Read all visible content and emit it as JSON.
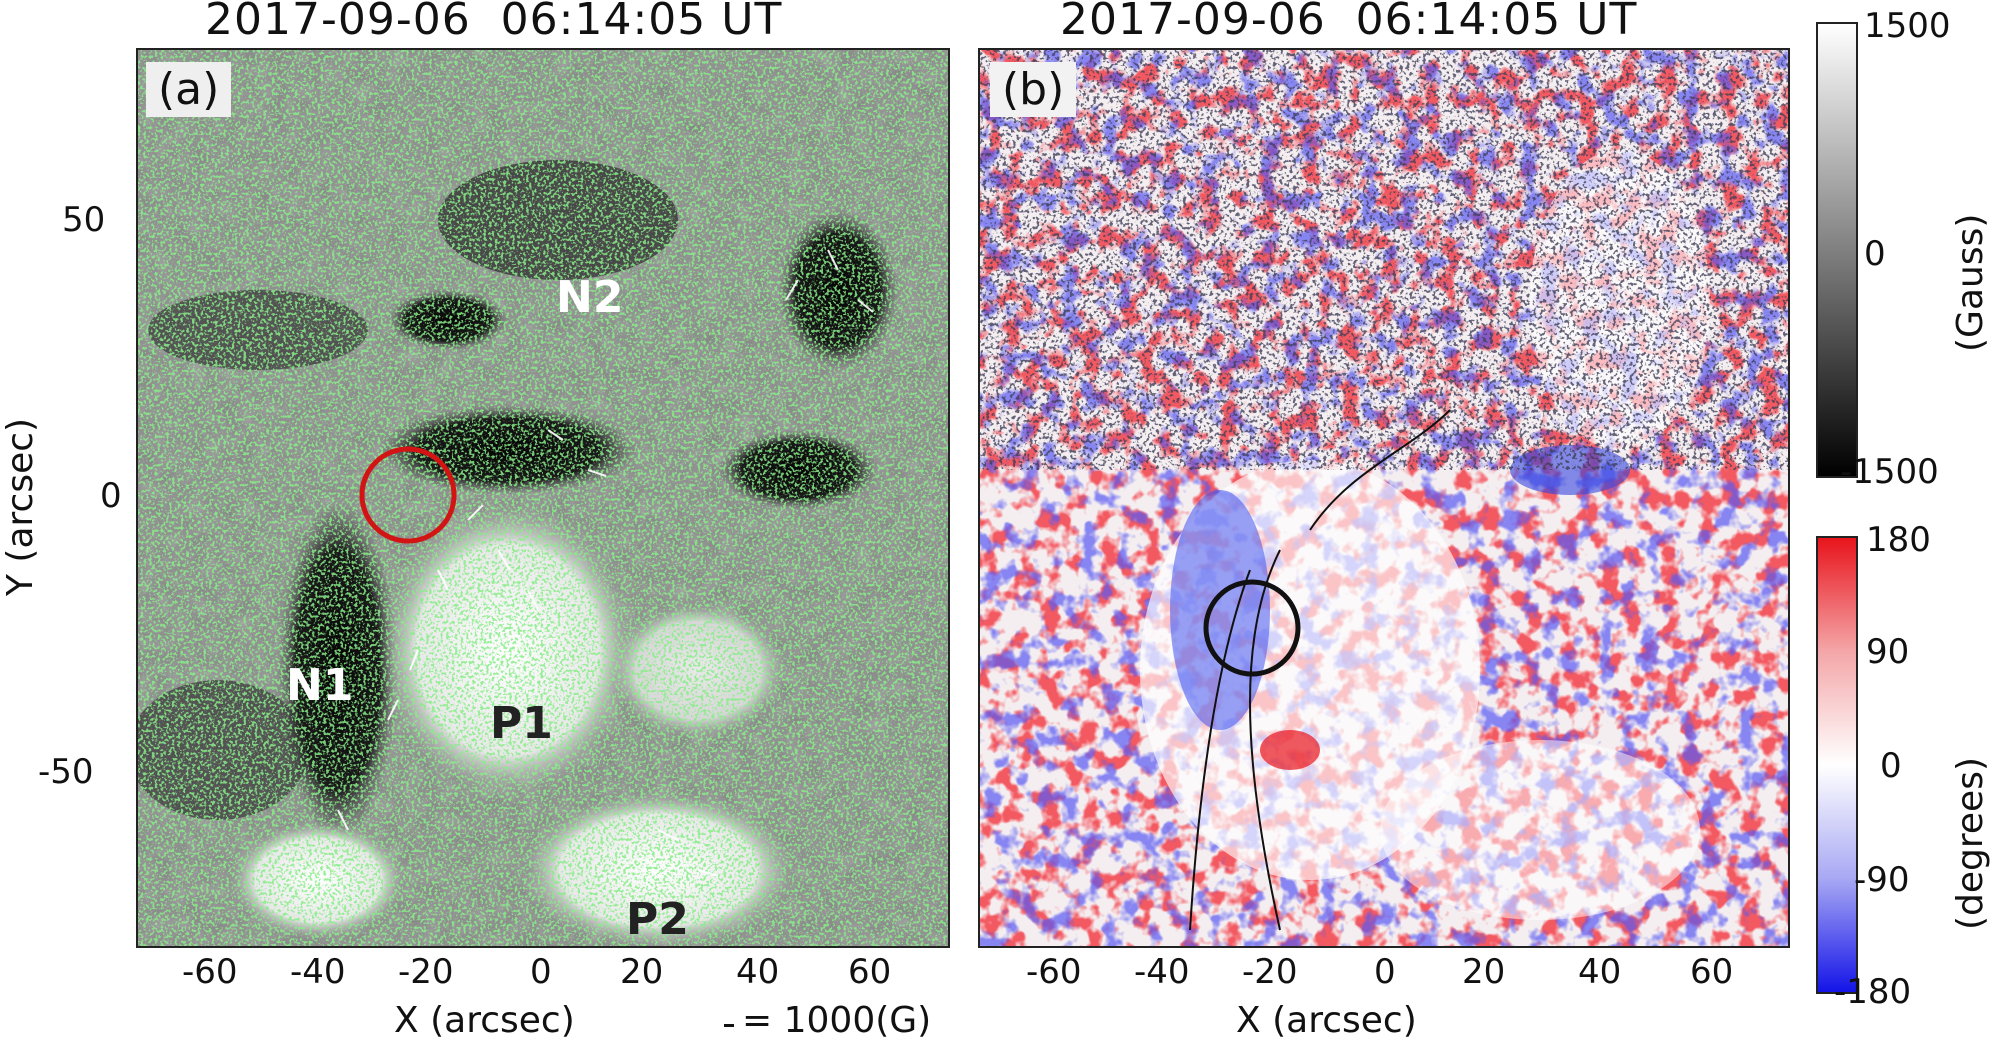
{
  "panel_a": {
    "title": "2017-09-06  06:14:05 UT",
    "label": "(a)",
    "regions": [
      "N2",
      "N1",
      "P1",
      "P2"
    ],
    "x_ticks": [
      "-60",
      "-40",
      "-20",
      "0",
      "20",
      "40",
      "60"
    ],
    "y_ticks": [
      "50",
      "0",
      "-50"
    ],
    "xlabel": "X (arcsec)",
    "ylabel": "Y (arcsec)",
    "vector_scale": "= 1000(G)"
  },
  "panel_b": {
    "title": "2017-09-06  06:14:05 UT",
    "label": "(b)",
    "x_ticks": [
      "-60",
      "-40",
      "-20",
      "0",
      "20",
      "40",
      "60"
    ],
    "xlabel": "X (arcsec)"
  },
  "colorbar_gauss": {
    "ticks": [
      "1500",
      "0",
      "-1500"
    ],
    "label": "(Gauss)"
  },
  "colorbar_degrees": {
    "ticks": [
      "180",
      "90",
      "0",
      "-90",
      "-180"
    ],
    "label": "(degrees)"
  },
  "colors": {
    "panel_a_contour": "#44dd44",
    "circle_a": "#d21414",
    "circle_b": "#111111",
    "degrees_high": "#e8141c",
    "degrees_low": "#1414e8"
  }
}
